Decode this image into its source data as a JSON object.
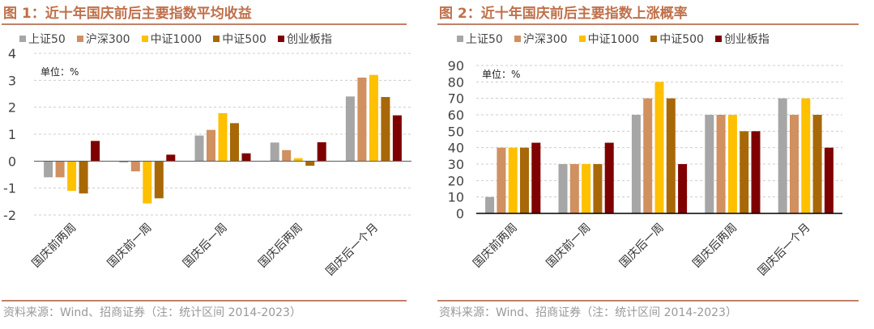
{
  "series_colors": [
    "#a6a6a6",
    "#d09060",
    "#ffc000",
    "#a86808",
    "#7f0000"
  ],
  "title_color": "#c0704a",
  "source": "资料来源：Wind、招商证券（注：统计区间 2014-2023）",
  "chart_data": [
    {
      "type": "bar",
      "title": "图 1：近十年国庆前后主要指数平均收益",
      "unit_label": "单位：%",
      "categories": [
        "国庆前两周",
        "国庆前一周",
        "国庆后一周",
        "国庆后两周",
        "国庆后一个月"
      ],
      "ylim": [
        -2,
        4
      ],
      "yticks": [
        "-2",
        "-1",
        "0",
        "1",
        "2",
        "3",
        "4"
      ],
      "grid": true,
      "legend_position": "top",
      "series": [
        {
          "name": "上证50",
          "values": [
            -0.6,
            -0.05,
            0.95,
            0.69,
            2.4
          ]
        },
        {
          "name": "沪深300",
          "values": [
            -0.6,
            -0.38,
            1.16,
            0.41,
            3.1
          ]
        },
        {
          "name": "中证1000",
          "values": [
            -1.1,
            -1.57,
            1.78,
            0.11,
            3.2
          ]
        },
        {
          "name": "中证500",
          "values": [
            -1.2,
            -1.38,
            1.41,
            -0.17,
            2.38
          ]
        },
        {
          "name": "创业板指",
          "values": [
            0.75,
            0.24,
            0.29,
            0.7,
            1.7
          ]
        }
      ]
    },
    {
      "type": "bar",
      "title": "图 2：近十年国庆前后主要指数上涨概率",
      "unit_label": "单位：%",
      "categories": [
        "国庆前两周",
        "国庆前一周",
        "国庆后一周",
        "国庆后两周",
        "国庆后一个月"
      ],
      "ylim": [
        0,
        90
      ],
      "yticks": [
        "0",
        "10",
        "20",
        "30",
        "40",
        "50",
        "60",
        "70",
        "80",
        "90"
      ],
      "grid": true,
      "legend_position": "top",
      "series": [
        {
          "name": "上证50",
          "values": [
            10,
            30,
            60,
            60,
            70
          ]
        },
        {
          "name": "沪深300",
          "values": [
            40,
            30,
            70,
            60,
            60
          ]
        },
        {
          "name": "中证1000",
          "values": [
            40,
            30,
            80,
            60,
            70
          ]
        },
        {
          "name": "中证500",
          "values": [
            40,
            30,
            70,
            50,
            60
          ]
        },
        {
          "name": "创业板指",
          "values": [
            43,
            43,
            30,
            50,
            40
          ]
        }
      ]
    }
  ]
}
